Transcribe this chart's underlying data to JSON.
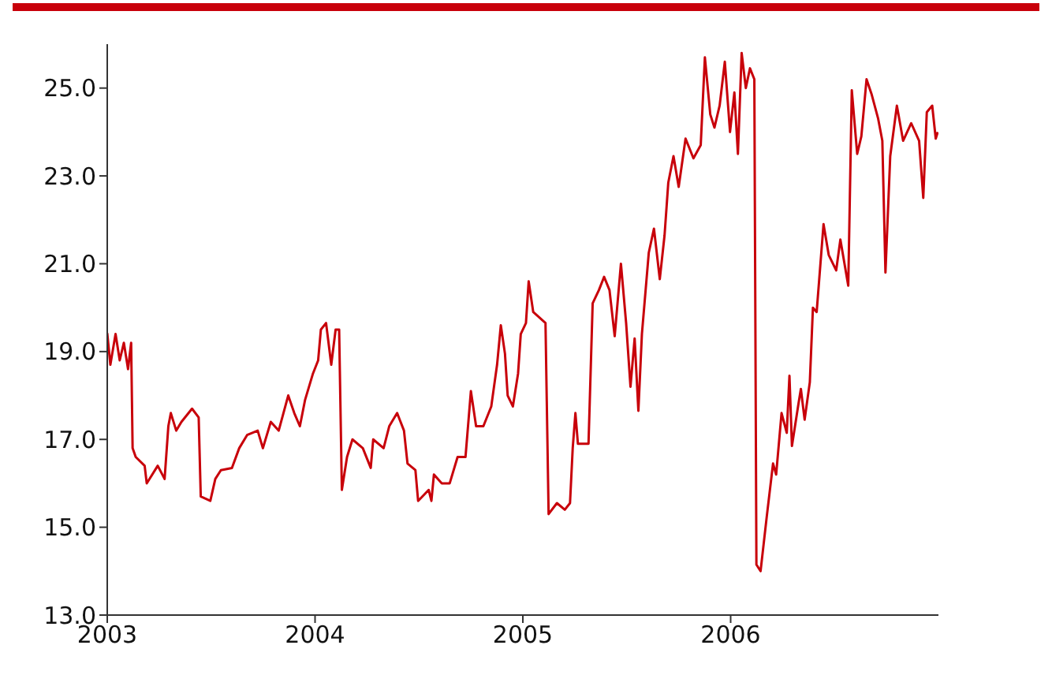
{
  "chart_data": {
    "type": "line",
    "x": [
      2003.0,
      2003.015,
      2003.04,
      2003.06,
      2003.08,
      2003.1,
      2003.115,
      2003.122,
      2003.137,
      2003.18,
      2003.19,
      2003.243,
      2003.276,
      2003.294,
      2003.306,
      2003.332,
      2003.357,
      2003.408,
      2003.44,
      2003.45,
      2003.496,
      2003.52,
      2003.547,
      2003.6,
      2003.635,
      2003.673,
      2003.724,
      2003.749,
      2003.787,
      2003.825,
      2003.871,
      2003.9,
      2003.927,
      2003.952,
      2003.99,
      2004.015,
      2004.028,
      2004.053,
      2004.078,
      2004.099,
      2004.116,
      2004.129,
      2004.154,
      2004.18,
      2004.23,
      2004.268,
      2004.28,
      2004.33,
      2004.357,
      2004.395,
      2004.428,
      2004.445,
      2004.483,
      2004.496,
      2004.547,
      2004.56,
      2004.572,
      2004.61,
      2004.648,
      2004.686,
      2004.724,
      2004.75,
      2004.775,
      2004.81,
      2004.848,
      2004.876,
      2004.894,
      2004.914,
      2004.927,
      2004.952,
      2004.977,
      2004.99,
      2005.015,
      2005.028,
      2005.05,
      2005.109,
      2005.124,
      2005.164,
      2005.202,
      2005.227,
      2005.24,
      2005.253,
      2005.265,
      2005.316,
      2005.336,
      2005.366,
      2005.391,
      2005.417,
      2005.442,
      2005.472,
      2005.497,
      2005.518,
      2005.538,
      2005.556,
      2005.573,
      2005.606,
      2005.631,
      2005.659,
      2005.682,
      2005.7,
      2005.725,
      2005.75,
      2005.783,
      2005.821,
      2005.856,
      2005.876,
      2005.902,
      2005.922,
      2005.947,
      2005.972,
      2005.997,
      2006.018,
      2006.035,
      2006.053,
      2006.073,
      2006.093,
      2006.114,
      2006.124,
      2006.144,
      2006.174,
      2006.204,
      2006.219,
      2006.245,
      2006.27,
      2006.283,
      2006.295,
      2006.326,
      2006.338,
      2006.356,
      2006.381,
      2006.396,
      2006.414,
      2006.447,
      2006.472,
      2006.508,
      2006.528,
      2006.566,
      2006.583,
      2006.609,
      2006.629,
      2006.654,
      2006.679,
      2006.71,
      2006.73,
      2006.745,
      2006.768,
      2006.8,
      2006.83,
      2006.869,
      2006.907,
      2006.927,
      2006.944,
      2006.97,
      2006.987,
      2006.997
    ],
    "series": [
      {
        "color": "#c8000a",
        "values": [
          19.42,
          18.7,
          19.4,
          18.8,
          19.2,
          18.6,
          19.2,
          16.8,
          16.6,
          16.4,
          16.0,
          16.4,
          16.1,
          17.3,
          17.6,
          17.2,
          17.4,
          17.7,
          17.5,
          15.7,
          15.6,
          16.1,
          16.3,
          16.35,
          16.8,
          17.1,
          17.2,
          16.8,
          17.4,
          17.2,
          18.0,
          17.6,
          17.3,
          17.9,
          18.5,
          18.8,
          19.5,
          19.65,
          18.7,
          19.5,
          19.5,
          15.85,
          16.6,
          17.0,
          16.8,
          16.35,
          17.0,
          16.8,
          17.3,
          17.6,
          17.2,
          16.45,
          16.3,
          15.6,
          15.85,
          15.6,
          16.2,
          16.0,
          16.0,
          16.6,
          16.6,
          18.1,
          17.3,
          17.3,
          17.75,
          18.7,
          19.6,
          18.95,
          18.0,
          17.75,
          18.5,
          19.4,
          19.65,
          20.6,
          19.9,
          19.65,
          15.3,
          15.55,
          15.4,
          15.55,
          16.8,
          17.6,
          16.9,
          16.9,
          20.1,
          20.4,
          20.7,
          20.4,
          19.35,
          21.0,
          19.65,
          18.2,
          19.3,
          17.65,
          19.4,
          21.25,
          21.8,
          20.65,
          21.65,
          22.85,
          23.45,
          22.75,
          23.85,
          23.4,
          23.7,
          25.7,
          24.4,
          24.1,
          24.6,
          25.6,
          24.0,
          24.9,
          23.5,
          25.8,
          25.0,
          25.45,
          25.2,
          14.15,
          14.0,
          15.25,
          16.45,
          16.2,
          17.6,
          17.15,
          18.45,
          16.85,
          17.8,
          18.15,
          17.45,
          18.3,
          20.0,
          19.9,
          21.9,
          21.2,
          20.85,
          21.55,
          20.5,
          24.95,
          23.5,
          23.9,
          25.2,
          24.85,
          24.3,
          23.8,
          20.8,
          23.45,
          24.6,
          23.8,
          24.2,
          23.8,
          22.5,
          24.45,
          24.6,
          23.85,
          24.0
        ]
      }
    ],
    "xlim": [
      2003,
      2007
    ],
    "xticks": [
      2003,
      2004,
      2005,
      2006
    ],
    "ylim": [
      13,
      26
    ],
    "yticks": [
      {
        "value": 13,
        "label": "13.0"
      },
      {
        "value": 15,
        "label": "15.0"
      },
      {
        "value": 17,
        "label": "17.0"
      },
      {
        "value": 19,
        "label": "19.0"
      },
      {
        "value": 21,
        "label": "21.0"
      },
      {
        "value": 23,
        "label": "23.0"
      },
      {
        "value": 25,
        "label": "25.0"
      }
    ],
    "grid": false,
    "legend": false,
    "marker": "none",
    "line_style": "solid"
  }
}
